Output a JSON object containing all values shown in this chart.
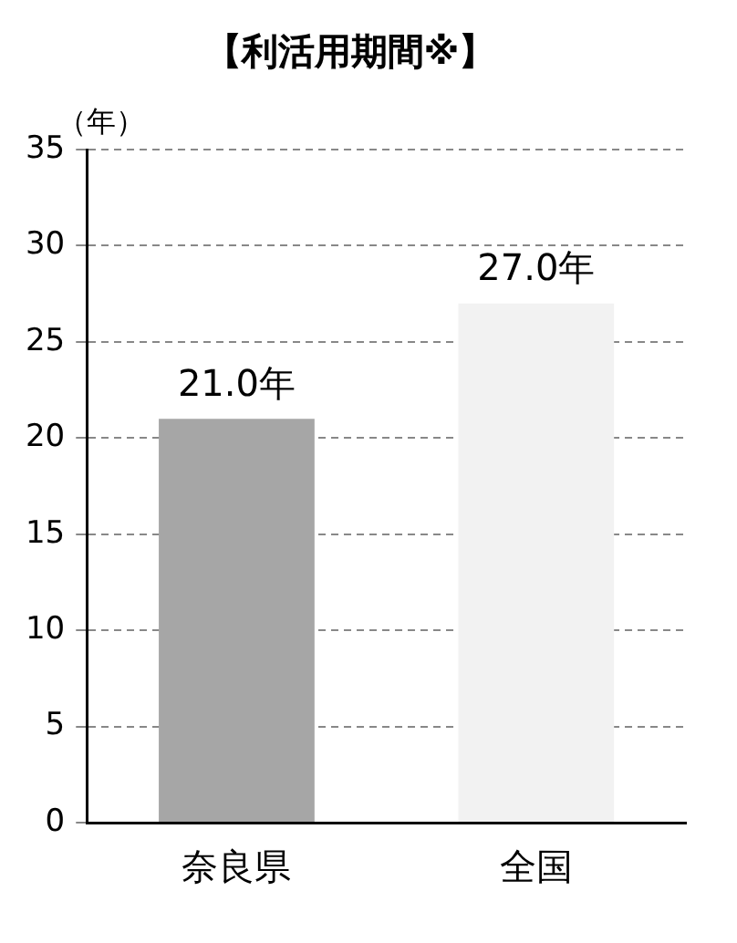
{
  "chart_data": {
    "type": "bar",
    "title": "【利活用期間※】",
    "ylabel": "（年）",
    "categories": [
      "奈良県",
      "全国"
    ],
    "values": [
      21.0,
      27.0
    ],
    "colors": [
      "#a6a6a6",
      "#f2f2f2"
    ],
    "value_labels": [
      "21.0年",
      "27.0年"
    ],
    "ylim": [
      0,
      35
    ],
    "yticks": [
      0,
      5,
      10,
      15,
      20,
      25,
      30,
      35
    ],
    "grid": "y",
    "legend": false
  }
}
